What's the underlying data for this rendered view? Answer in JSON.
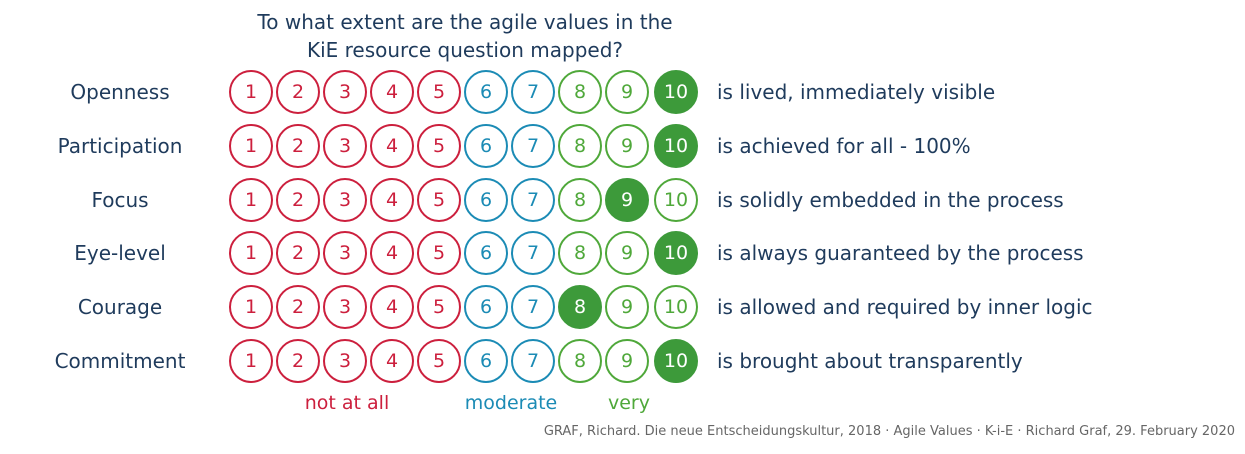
{
  "title": {
    "line1": "To what extent are the agile values in the",
    "line2": "KiE resource question mapped?"
  },
  "scale": {
    "numbers": [
      "1",
      "2",
      "3",
      "4",
      "5",
      "6",
      "7",
      "8",
      "9",
      "10"
    ],
    "groups": [
      {
        "label": "not at all",
        "color": "#cc1f3d",
        "from": 1,
        "to": 5
      },
      {
        "label": "moderate",
        "color": "#1b8bb5",
        "from": 6,
        "to": 7
      },
      {
        "label": "very",
        "color": "#4fa83a",
        "from": 8,
        "to": 10
      }
    ],
    "selected_fill": "#3d9a3a"
  },
  "rows": [
    {
      "value": "Openness",
      "rating": 10,
      "description": "is lived, immediately visible"
    },
    {
      "value": "Participation",
      "rating": 10,
      "description": "is achieved for all - 100%"
    },
    {
      "value": "Focus",
      "rating": 9,
      "description": "is solidly embedded in the process"
    },
    {
      "value": "Eye-level",
      "rating": 10,
      "description": "is always guaranteed by the process"
    },
    {
      "value": "Courage",
      "rating": 8,
      "description": "is allowed and required by inner logic"
    },
    {
      "value": "Commitment",
      "rating": 10,
      "description": "is brought about transparently"
    }
  ],
  "footer": "GRAF, Richard. Die neue Entscheidungskultur, 2018 · Agile Values · K-i-E · Richard Graf, 29. February 2020"
}
